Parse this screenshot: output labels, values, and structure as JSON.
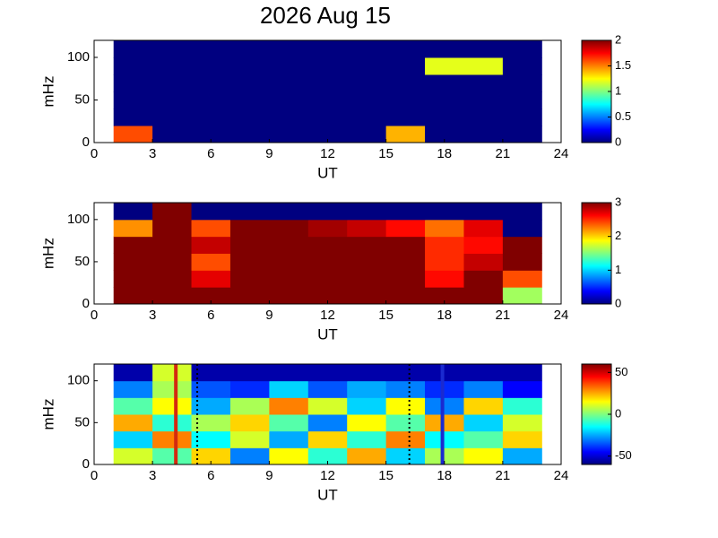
{
  "chart_data": [
    {
      "type": "heatmap",
      "title": "2026 Aug 15",
      "xlabel": "UT",
      "ylabel": "mHz",
      "colormap": "jet",
      "xlim": [
        0,
        24
      ],
      "xticks": [
        0,
        3,
        6,
        9,
        12,
        15,
        18,
        21,
        24
      ],
      "ylim": [
        0,
        120
      ],
      "yticks": [
        0,
        50,
        100
      ],
      "xbins": [
        1,
        3,
        5,
        7,
        9,
        11,
        13,
        15,
        17,
        19,
        21,
        23
      ],
      "ybins": [
        0,
        20,
        40,
        60,
        80,
        100,
        120
      ],
      "clim": [
        0,
        2
      ],
      "cticks": [
        0,
        0.5,
        1,
        1.5,
        2
      ],
      "z": [
        [
          1.6,
          0,
          0,
          0,
          0,
          0,
          0,
          1.4,
          0,
          0,
          0
        ],
        [
          0,
          0,
          0,
          0,
          0,
          0,
          0,
          0,
          0,
          0,
          0
        ],
        [
          0,
          0,
          0,
          0,
          0,
          0,
          0,
          0,
          0,
          0,
          0
        ],
        [
          0,
          0,
          0,
          0,
          0,
          0,
          0,
          0,
          0,
          0,
          0
        ],
        [
          0,
          0,
          0,
          0,
          0,
          0,
          0,
          0,
          1.2,
          1.2,
          0
        ],
        [
          0,
          0,
          0,
          0,
          0,
          0,
          0,
          0,
          0,
          0,
          0
        ]
      ]
    },
    {
      "type": "heatmap",
      "xlabel": "UT",
      "ylabel": "mHz",
      "colormap": "jet",
      "xlim": [
        0,
        24
      ],
      "xticks": [
        0,
        3,
        6,
        9,
        12,
        15,
        18,
        21,
        24
      ],
      "ylim": [
        0,
        120
      ],
      "yticks": [
        0,
        50,
        100
      ],
      "xbins": [
        1,
        3,
        5,
        7,
        9,
        11,
        13,
        15,
        17,
        19,
        21,
        23
      ],
      "ybins": [
        0,
        20,
        40,
        60,
        80,
        100,
        120
      ],
      "clim": [
        0,
        3
      ],
      "cticks": [
        0,
        1,
        2,
        3
      ],
      "z": [
        [
          3,
          3,
          3,
          3,
          3,
          3,
          3,
          3,
          3,
          3,
          1.6
        ],
        [
          3,
          3,
          2.7,
          3,
          3,
          3,
          3,
          3,
          2.6,
          3,
          2.4
        ],
        [
          3,
          3,
          2.4,
          3,
          3,
          3,
          3,
          3,
          2.5,
          2.8,
          3
        ],
        [
          3,
          3,
          2.8,
          3,
          3,
          3,
          3,
          3,
          2.5,
          2.6,
          3
        ],
        [
          2.2,
          3,
          2.4,
          3,
          3,
          2.9,
          2.8,
          2.6,
          2.3,
          2.7,
          0
        ],
        [
          0,
          3,
          0,
          0,
          0,
          0,
          0,
          0,
          0,
          0,
          0
        ]
      ]
    },
    {
      "type": "heatmap",
      "xlabel": "UT",
      "ylabel": "mHz",
      "colormap": "jet",
      "xlim": [
        0,
        24
      ],
      "xticks": [
        0,
        3,
        6,
        9,
        12,
        15,
        18,
        21,
        24
      ],
      "ylim": [
        0,
        120
      ],
      "yticks": [
        0,
        50,
        100
      ],
      "xbins": [
        1,
        3,
        5,
        7,
        9,
        11,
        13,
        15,
        17,
        19,
        21,
        23
      ],
      "ybins": [
        0,
        20,
        40,
        60,
        80,
        100,
        120
      ],
      "clim": [
        -60,
        60
      ],
      "cticks": [
        -50,
        0,
        50
      ],
      "z": [
        [
          10,
          -5,
          20,
          -30,
          15,
          -10,
          25,
          -20,
          5,
          15,
          -25
        ],
        [
          -20,
          30,
          -15,
          10,
          -25,
          20,
          -10,
          30,
          -15,
          -5,
          20
        ],
        [
          25,
          -10,
          5,
          20,
          -5,
          -30,
          15,
          -5,
          25,
          -20,
          10
        ],
        [
          -5,
          15,
          -25,
          5,
          30,
          10,
          -20,
          15,
          -30,
          20,
          -10
        ],
        [
          -30,
          5,
          -35,
          -40,
          -20,
          -35,
          -25,
          -30,
          -40,
          -30,
          -45
        ],
        [
          -55,
          10,
          -55,
          -55,
          -55,
          -55,
          -55,
          -55,
          -55,
          -55,
          -55
        ]
      ],
      "vlines": [
        {
          "x": 4.2,
          "color": "#d42a10",
          "style": "solid"
        },
        {
          "x": 5.3,
          "color": "#000000",
          "style": "dotted"
        },
        {
          "x": 16.2,
          "color": "#000000",
          "style": "dotted"
        },
        {
          "x": 17.9,
          "color": "#1a2ad0",
          "style": "solid"
        }
      ]
    }
  ]
}
